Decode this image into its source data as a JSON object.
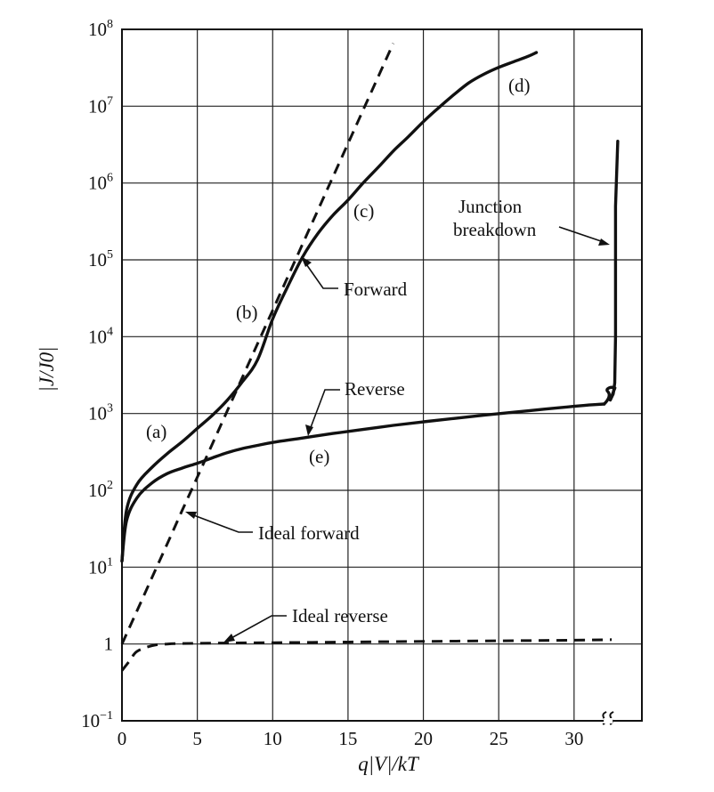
{
  "chart_data": {
    "type": "line",
    "title": "",
    "xlabel": "q|V|/kT",
    "ylabel": "|J/J0|",
    "x_ticks": [
      "0",
      "5",
      "10",
      "15",
      "20",
      "25",
      "30"
    ],
    "y_ticks": [
      {
        "base": "10",
        "exp": "−1"
      },
      {
        "base": "1",
        "exp": ""
      },
      {
        "base": "10",
        "exp": "1"
      },
      {
        "base": "10",
        "exp": "2"
      },
      {
        "base": "10",
        "exp": "3"
      },
      {
        "base": "10",
        "exp": "4"
      },
      {
        "base": "10",
        "exp": "5"
      },
      {
        "base": "10",
        "exp": "6"
      },
      {
        "base": "10",
        "exp": "7"
      },
      {
        "base": "10",
        "exp": "8"
      }
    ],
    "xlim": [
      0,
      34.5
    ],
    "ylim_log10": [
      -1,
      8
    ],
    "y_scale": "log",
    "grid": true,
    "series": [
      {
        "name": "Forward",
        "style": "solid",
        "x": [
          0,
          0.3,
          1,
          2,
          3,
          4,
          5,
          6,
          7,
          8,
          9,
          10,
          11,
          12,
          13,
          14,
          15,
          16,
          17,
          18,
          19,
          20,
          21,
          22,
          23,
          24,
          25,
          26,
          27,
          27.5
        ],
        "y": [
          12,
          55,
          120,
          200,
          300,
          430,
          640,
          950,
          1500,
          2600,
          5000,
          17000,
          45000,
          110000,
          220000,
          380000,
          600000,
          1000000,
          1600000,
          2600000,
          4000000,
          6300000,
          9500000,
          14000000,
          20000000,
          26000000,
          32000000,
          38000000,
          45000000,
          50000000
        ]
      },
      {
        "name": "Reverse",
        "style": "solid",
        "x": [
          0,
          0.3,
          1,
          2,
          3,
          4,
          5,
          6,
          7,
          8,
          9,
          10,
          12,
          14,
          16,
          18,
          20,
          22,
          24,
          26,
          28,
          30,
          31,
          32
        ],
        "y": [
          12,
          40,
          80,
          125,
          165,
          195,
          225,
          265,
          310,
          350,
          385,
          420,
          480,
          550,
          620,
          700,
          780,
          860,
          950,
          1040,
          1140,
          1240,
          1290,
          1330
        ]
      },
      {
        "name": "Junction breakdown",
        "style": "solid",
        "x": [
          32.4,
          32.6,
          32.7,
          32.75,
          32.75,
          32.9
        ],
        "y": [
          1500,
          1800,
          2500,
          10000,
          500000,
          3500000
        ]
      },
      {
        "name": "Ideal forward",
        "style": "dashed",
        "x": [
          0,
          1,
          2,
          3,
          4,
          5,
          6,
          7,
          8,
          9,
          10,
          11,
          12,
          13,
          14,
          15,
          16,
          17,
          18
        ],
        "y": [
          1,
          2.7,
          7.4,
          20,
          55,
          148,
          403,
          1097,
          2981,
          8103,
          22026,
          59874,
          162755,
          442413,
          1202604,
          3269017,
          8886111,
          24154953,
          65659969
        ]
      },
      {
        "name": "Ideal reverse",
        "style": "dashed",
        "x": [
          0,
          0.5,
          1,
          2,
          3,
          5,
          10,
          15,
          20,
          25,
          30,
          32.5
        ],
        "y": [
          0.45,
          0.6,
          0.8,
          0.95,
          1.0,
          1.02,
          1.04,
          1.06,
          1.08,
          1.1,
          1.12,
          1.14
        ]
      }
    ],
    "annotations": {
      "a": "(a)",
      "b": "(b)",
      "c": "(c)",
      "d": "(d)",
      "e": "(e)",
      "forward": "Forward",
      "reverse": "Reverse",
      "ideal_forward": "Ideal forward",
      "ideal_reverse": "Ideal reverse",
      "breakdown_line1": "Junction",
      "breakdown_line2": "breakdown"
    }
  }
}
